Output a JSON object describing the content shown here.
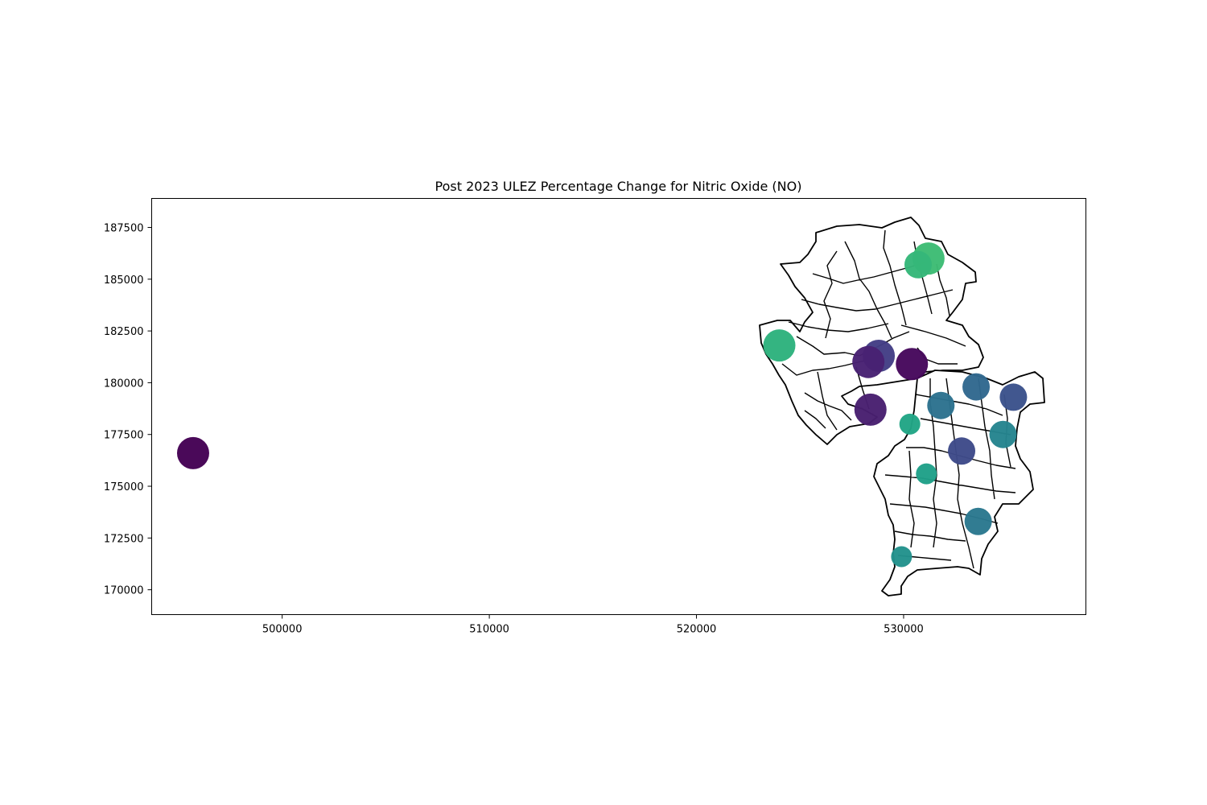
{
  "chart_data": {
    "type": "scatter",
    "title": "Post 2023 ULEZ Percentage Change for Nitric Oxide (NO)",
    "xlabel": "",
    "ylabel": "",
    "xlim": [
      493700,
      538800
    ],
    "ylim": [
      168800,
      188900
    ],
    "x_ticks": [
      500000,
      510000,
      520000,
      530000
    ],
    "y_ticks": [
      170000,
      172500,
      175000,
      177500,
      180000,
      182500,
      185000,
      187500
    ],
    "x_tick_labels": [
      "500000",
      "510000",
      "520000",
      "530000"
    ],
    "y_tick_labels": [
      "170000",
      "172500",
      "175000",
      "177500",
      "180000",
      "182500",
      "185000",
      "187500"
    ],
    "grid": false,
    "legend": "none",
    "colormap": "viridis",
    "basemap": "ward boundaries outlined in black",
    "points": [
      {
        "x": 495700,
        "y": 176600,
        "color": "#440154",
        "size": "large"
      },
      {
        "x": 531200,
        "y": 186000,
        "color": "#3dbc74",
        "size": "large"
      },
      {
        "x": 530700,
        "y": 185700,
        "color": "#35b779",
        "size": "medium"
      },
      {
        "x": 524000,
        "y": 181800,
        "color": "#2db27d",
        "size": "large"
      },
      {
        "x": 528800,
        "y": 181300,
        "color": "#433e85",
        "size": "large"
      },
      {
        "x": 528300,
        "y": 181000,
        "color": "#482173",
        "size": "large"
      },
      {
        "x": 530400,
        "y": 180900,
        "color": "#46085c",
        "size": "large"
      },
      {
        "x": 533500,
        "y": 179800,
        "color": "#31688e",
        "size": "medium"
      },
      {
        "x": 535300,
        "y": 179300,
        "color": "#3b528b",
        "size": "medium"
      },
      {
        "x": 531800,
        "y": 178900,
        "color": "#2c728e",
        "size": "medium"
      },
      {
        "x": 528400,
        "y": 178700,
        "color": "#481f70",
        "size": "large"
      },
      {
        "x": 530300,
        "y": 178000,
        "color": "#21a585",
        "size": "small"
      },
      {
        "x": 534800,
        "y": 177500,
        "color": "#25848e",
        "size": "medium"
      },
      {
        "x": 532800,
        "y": 176700,
        "color": "#3e4a89",
        "size": "medium"
      },
      {
        "x": 531100,
        "y": 175600,
        "color": "#1fa088",
        "size": "small"
      },
      {
        "x": 533600,
        "y": 173300,
        "color": "#2a788e",
        "size": "medium"
      },
      {
        "x": 529900,
        "y": 171600,
        "color": "#22928c",
        "size": "small"
      }
    ]
  }
}
